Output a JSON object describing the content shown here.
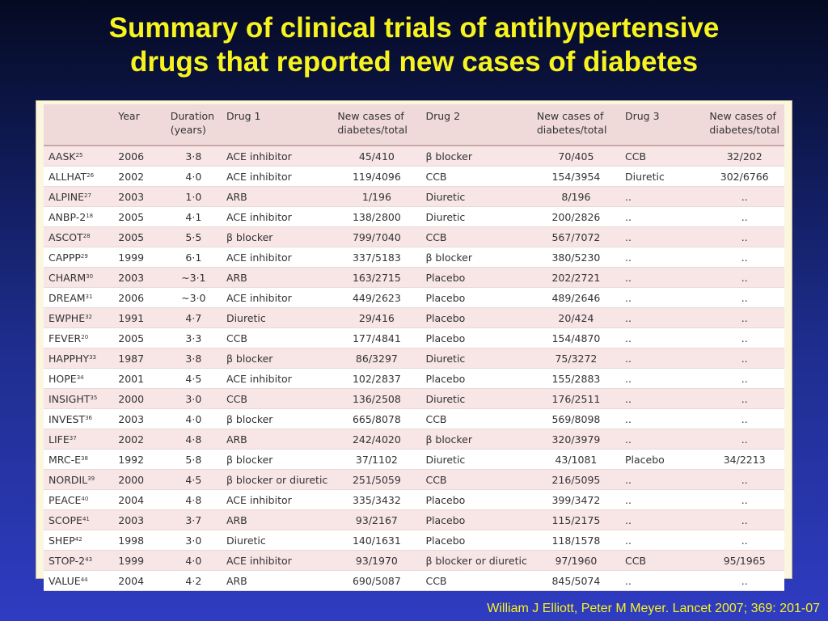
{
  "title": {
    "line1": "Summary of clinical trials of antihypertensive",
    "line2": "drugs that reported new cases of diabetes"
  },
  "table": {
    "headers": [
      "",
      "Year",
      "Duration (years)",
      "Drug 1",
      "New cases of diabetes/total",
      "Drug 2",
      "New cases of diabetes/total",
      "Drug 3",
      "New cases of diabetes/total"
    ],
    "rows": [
      {
        "trial": "AASK",
        "ref": "25",
        "year": "2006",
        "duration": "3·8",
        "drug1": "ACE inhibitor",
        "n1": "45/410",
        "drug2": "β blocker",
        "n2": "70/405",
        "drug3": "CCB",
        "n3": "32/202"
      },
      {
        "trial": "ALLHAT",
        "ref": "26",
        "year": "2002",
        "duration": "4·0",
        "drug1": "ACE inhibitor",
        "n1": "119/4096",
        "drug2": "CCB",
        "n2": "154/3954",
        "drug3": "Diuretic",
        "n3": "302/6766"
      },
      {
        "trial": "ALPINE",
        "ref": "27",
        "year": "2003",
        "duration": "1·0",
        "drug1": "ARB",
        "n1": "1/196",
        "drug2": "Diuretic",
        "n2": "8/196",
        "drug3": "..",
        "n3": ".."
      },
      {
        "trial": "ANBP-2",
        "ref": "18",
        "year": "2005",
        "duration": "4·1",
        "drug1": "ACE inhibitor",
        "n1": "138/2800",
        "drug2": "Diuretic",
        "n2": "200/2826",
        "drug3": "..",
        "n3": ".."
      },
      {
        "trial": "ASCOT",
        "ref": "28",
        "year": "2005",
        "duration": "5·5",
        "drug1": "β blocker",
        "n1": "799/7040",
        "drug2": "CCB",
        "n2": "567/7072",
        "drug3": "..",
        "n3": ".."
      },
      {
        "trial": "CAPPP",
        "ref": "29",
        "year": "1999",
        "duration": "6·1",
        "drug1": "ACE inhibitor",
        "n1": "337/5183",
        "drug2": "β blocker",
        "n2": "380/5230",
        "drug3": "..",
        "n3": ".."
      },
      {
        "trial": "CHARM",
        "ref": "30",
        "year": "2003",
        "duration": "~3·1",
        "drug1": "ARB",
        "n1": "163/2715",
        "drug2": "Placebo",
        "n2": "202/2721",
        "drug3": "..",
        "n3": ".."
      },
      {
        "trial": "DREAM",
        "ref": "31",
        "year": "2006",
        "duration": "~3·0",
        "drug1": "ACE inhibitor",
        "n1": "449/2623",
        "drug2": "Placebo",
        "n2": "489/2646",
        "drug3": "..",
        "n3": ".."
      },
      {
        "trial": "EWPHE",
        "ref": "32",
        "year": "1991",
        "duration": "4·7",
        "drug1": "Diuretic",
        "n1": "29/416",
        "drug2": "Placebo",
        "n2": "20/424",
        "drug3": "..",
        "n3": ".."
      },
      {
        "trial": "FEVER",
        "ref": "20",
        "year": "2005",
        "duration": "3·3",
        "drug1": "CCB",
        "n1": "177/4841",
        "drug2": "Placebo",
        "n2": "154/4870",
        "drug3": "..",
        "n3": ".."
      },
      {
        "trial": "HAPPHY",
        "ref": "33",
        "year": "1987",
        "duration": "3·8",
        "drug1": "β blocker",
        "n1": "86/3297",
        "drug2": "Diuretic",
        "n2": "75/3272",
        "drug3": "..",
        "n3": ".."
      },
      {
        "trial": "HOPE",
        "ref": "34",
        "year": "2001",
        "duration": "4·5",
        "drug1": "ACE inhibitor",
        "n1": "102/2837",
        "drug2": "Placebo",
        "n2": "155/2883",
        "drug3": "..",
        "n3": ".."
      },
      {
        "trial": "INSIGHT",
        "ref": "35",
        "year": "2000",
        "duration": "3·0",
        "drug1": "CCB",
        "n1": "136/2508",
        "drug2": "Diuretic",
        "n2": "176/2511",
        "drug3": "..",
        "n3": ".."
      },
      {
        "trial": "INVEST",
        "ref": "36",
        "year": "2003",
        "duration": "4·0",
        "drug1": "β blocker",
        "n1": "665/8078",
        "drug2": "CCB",
        "n2": "569/8098",
        "drug3": "..",
        "n3": ".."
      },
      {
        "trial": "LIFE",
        "ref": "37",
        "year": "2002",
        "duration": "4·8",
        "drug1": "ARB",
        "n1": "242/4020",
        "drug2": "β blocker",
        "n2": "320/3979",
        "drug3": "..",
        "n3": ".."
      },
      {
        "trial": "MRC-E",
        "ref": "38",
        "year": "1992",
        "duration": "5·8",
        "drug1": "β blocker",
        "n1": "37/1102",
        "drug2": "Diuretic",
        "n2": "43/1081",
        "drug3": "Placebo",
        "n3": "34/2213"
      },
      {
        "trial": "NORDIL",
        "ref": "39",
        "year": "2000",
        "duration": "4·5",
        "drug1": "β blocker or diuretic",
        "n1": "251/5059",
        "drug2": "CCB",
        "n2": "216/5095",
        "drug3": "..",
        "n3": ".."
      },
      {
        "trial": "PEACE",
        "ref": "40",
        "year": "2004",
        "duration": "4·8",
        "drug1": "ACE inhibitor",
        "n1": "335/3432",
        "drug2": "Placebo",
        "n2": "399/3472",
        "drug3": "..",
        "n3": ".."
      },
      {
        "trial": "SCOPE",
        "ref": "41",
        "year": "2003",
        "duration": "3·7",
        "drug1": "ARB",
        "n1": "93/2167",
        "drug2": "Placebo",
        "n2": "115/2175",
        "drug3": "..",
        "n3": ".."
      },
      {
        "trial": "SHEP",
        "ref": "42",
        "year": "1998",
        "duration": "3·0",
        "drug1": "Diuretic",
        "n1": "140/1631",
        "drug2": "Placebo",
        "n2": "118/1578",
        "drug3": "..",
        "n3": ".."
      },
      {
        "trial": "STOP-2",
        "ref": "43",
        "year": "1999",
        "duration": "4·0",
        "drug1": "ACE inhibitor",
        "n1": "93/1970",
        "drug2": "β blocker or diuretic",
        "n2": "97/1960",
        "drug3": "CCB",
        "n3": "95/1965"
      },
      {
        "trial": "VALUE",
        "ref": "44",
        "year": "2004",
        "duration": "4·2",
        "drug1": "ARB",
        "n1": "690/5087",
        "drug2": "CCB",
        "n2": "845/5074",
        "drug3": "..",
        "n3": ".."
      }
    ]
  },
  "citation": "William J Elliott, Peter M Meyer. Lancet 2007; 369: 201-07",
  "colors": {
    "title": "#f7f320",
    "row_tint": "#f8e5e5",
    "header_bg": "#f0d9d9"
  }
}
